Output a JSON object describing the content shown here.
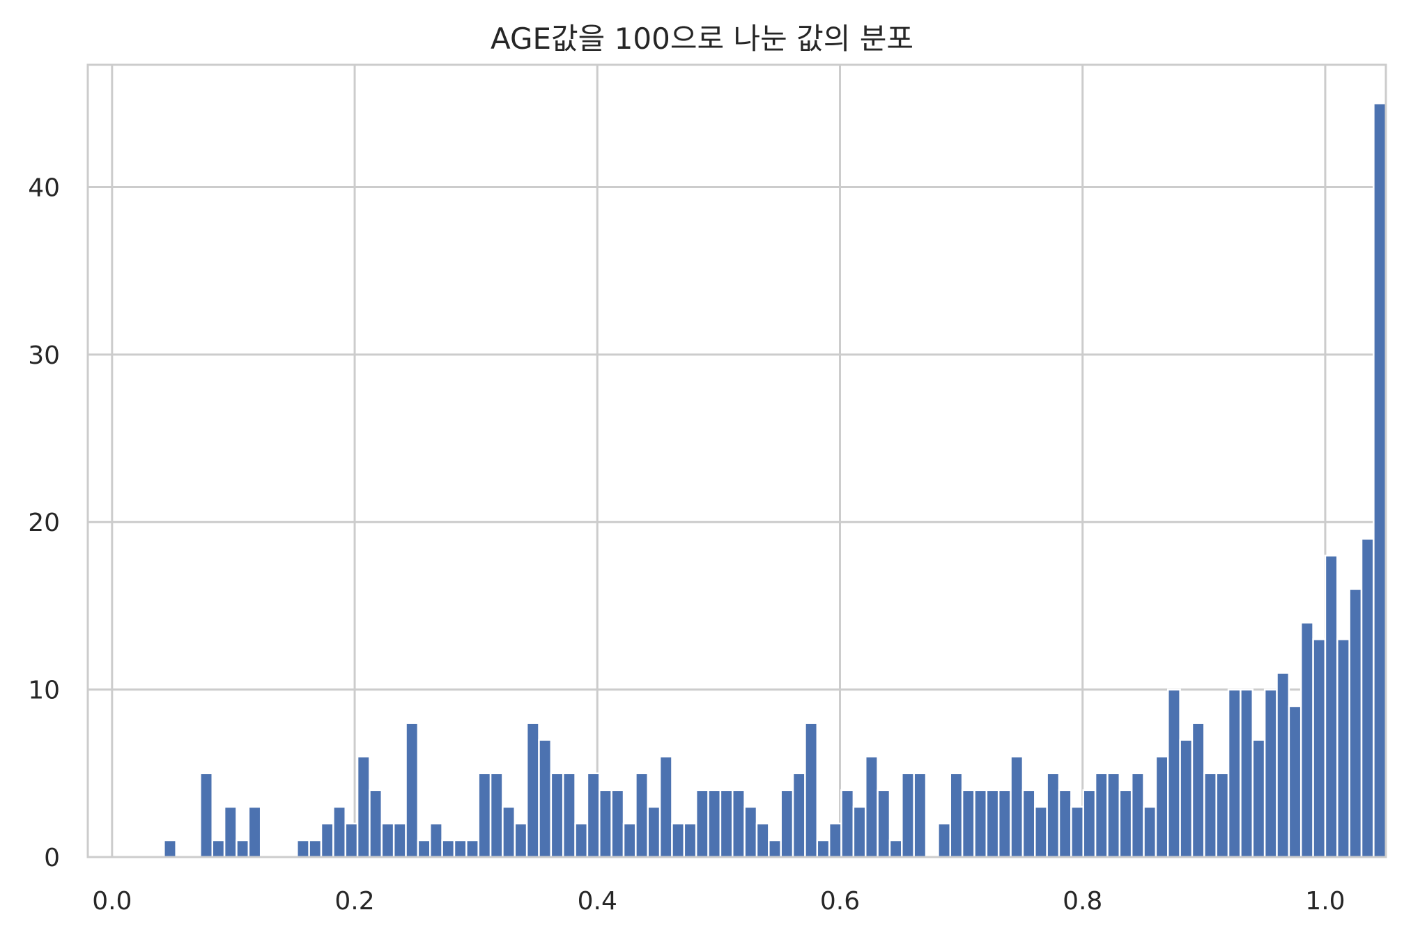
{
  "chart_data": {
    "type": "bar",
    "title": "AGE값을 100으로 나눈 값의 분포",
    "xlabel": "",
    "ylabel": "",
    "xlim": [
      -0.02,
      1.05
    ],
    "ylim": [
      0,
      47.3
    ],
    "grid": true,
    "bar_color": "#4c72b0",
    "grid_color": "#cccccc",
    "bin_start": 0.0029,
    "bin_width": 0.009971,
    "xticks": [
      "0.0",
      "0.2",
      "0.4",
      "0.6",
      "0.8",
      "1.0"
    ],
    "xtick_values": [
      0.0,
      0.2,
      0.4,
      0.6,
      0.8,
      1.0
    ],
    "yticks": [
      "0",
      "10",
      "20",
      "30",
      "40"
    ],
    "ytick_values": [
      0,
      10,
      20,
      30,
      40
    ],
    "values": [
      0,
      0,
      0,
      0,
      1,
      0,
      0,
      5,
      1,
      3,
      1,
      3,
      0,
      0,
      0,
      1,
      1,
      2,
      3,
      2,
      6,
      4,
      2,
      2,
      8,
      1,
      2,
      1,
      1,
      1,
      5,
      5,
      3,
      2,
      8,
      7,
      5,
      5,
      2,
      5,
      4,
      4,
      2,
      5,
      3,
      6,
      2,
      2,
      4,
      4,
      4,
      4,
      3,
      2,
      1,
      4,
      5,
      8,
      1,
      2,
      4,
      3,
      6,
      4,
      1,
      5,
      5,
      0,
      2,
      5,
      4,
      4,
      4,
      4,
      6,
      4,
      3,
      5,
      4,
      3,
      4,
      5,
      5,
      4,
      5,
      3,
      6,
      10,
      7,
      8,
      5,
      5,
      10,
      10,
      7,
      10,
      11,
      9,
      14,
      13,
      18,
      13,
      16,
      19,
      45
    ]
  }
}
